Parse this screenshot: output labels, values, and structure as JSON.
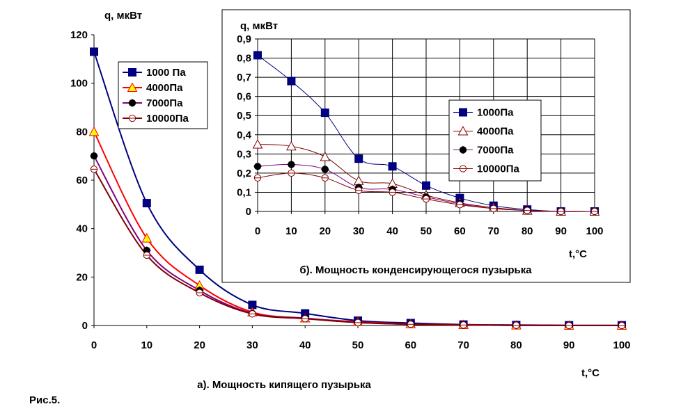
{
  "figure_label": "Рис.5.",
  "chart_data": [
    {
      "type": "line",
      "title": "а). Мощность кипящего пузырька",
      "xlabel": "t,°C",
      "ylabel": "q, мкВт",
      "x": [
        0,
        10,
        20,
        30,
        40,
        50,
        60,
        70,
        80,
        90,
        100
      ],
      "xlim": [
        0,
        100
      ],
      "ylim": [
        0,
        120
      ],
      "xticks": [
        "0",
        "10",
        "20",
        "30",
        "40",
        "50",
        "60",
        "70",
        "80",
        "90",
        "100"
      ],
      "yticks": [
        "0",
        "20",
        "40",
        "60",
        "80",
        "100",
        "120"
      ],
      "grid": false,
      "legend_position": "top-left",
      "series": [
        {
          "name": "1000 Па",
          "marker": "square",
          "color": "#000080",
          "marker_color": "#000080",
          "values": [
            113,
            50.5,
            23,
            8.5,
            5,
            2,
            1,
            0.4,
            0.2,
            0.1,
            0.1
          ]
        },
        {
          "name": "4000Па",
          "marker": "triangle",
          "color": "#ff0000",
          "marker_color": "#ffff00",
          "values": [
            80,
            36,
            16.5,
            5.5,
            3,
            1.5,
            0.6,
            0.3,
            0.1,
            0,
            0
          ]
        },
        {
          "name": "7000Па",
          "marker": "circle-filled",
          "color": "#800080",
          "marker_color": "#000000",
          "values": [
            70,
            31,
            14.5,
            5,
            3,
            1.3,
            0.5,
            0.2,
            0.1,
            0,
            0
          ]
        },
        {
          "name": "10000Па",
          "marker": "circle-open",
          "color": "#800000",
          "marker_color": "#800000",
          "values": [
            64.5,
            29,
            13.5,
            4.8,
            2.8,
            1.2,
            0.5,
            0.2,
            0.1,
            0,
            0
          ]
        }
      ]
    },
    {
      "type": "line",
      "title": "б). Мощность конденсирующегося пузырька",
      "xlabel": "t,°C",
      "ylabel": "q, мкВт",
      "x": [
        0,
        10,
        20,
        30,
        40,
        50,
        60,
        70,
        80,
        90,
        100
      ],
      "xlim": [
        0,
        100
      ],
      "ylim": [
        0,
        0.9
      ],
      "xticks": [
        "0",
        "10",
        "20",
        "30",
        "40",
        "50",
        "60",
        "70",
        "80",
        "90",
        "100"
      ],
      "yticks": [
        "0",
        "0,1",
        "0,2",
        "0,3",
        "0,4",
        "0,5",
        "0,6",
        "0,7",
        "0,8",
        "0,9"
      ],
      "grid": true,
      "legend_position": "right",
      "series": [
        {
          "name": "1000Па",
          "marker": "square",
          "color": "#000080",
          "marker_color": "#000080",
          "values": [
            0.815,
            0.68,
            0.515,
            0.275,
            0.235,
            0.135,
            0.07,
            0.03,
            0.01,
            0,
            0
          ]
        },
        {
          "name": "4000Па",
          "marker": "triangle-open",
          "color": "#800000",
          "marker_color": "#800000",
          "values": [
            0.35,
            0.34,
            0.285,
            0.16,
            0.145,
            0.085,
            0.045,
            0.02,
            0.005,
            0,
            0
          ]
        },
        {
          "name": "7000Па",
          "marker": "circle-filled",
          "color": "#800080",
          "marker_color": "#000000",
          "values": [
            0.235,
            0.245,
            0.22,
            0.125,
            0.115,
            0.075,
            0.04,
            0.015,
            0.005,
            0,
            0
          ]
        },
        {
          "name": "10000Па",
          "marker": "circle-open",
          "color": "#800000",
          "marker_color": "#800000",
          "values": [
            0.175,
            0.2,
            0.175,
            0.11,
            0.1,
            0.065,
            0.035,
            0.015,
            0.005,
            0,
            0
          ]
        }
      ]
    }
  ]
}
